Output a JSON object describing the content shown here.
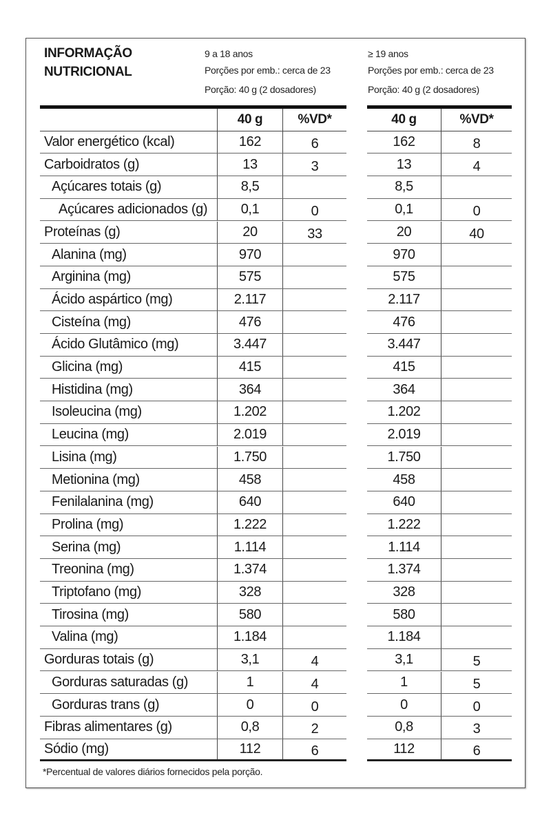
{
  "title": [
    "INFORMAÇÃO",
    "NUTRICIONAL"
  ],
  "groups": [
    {
      "age": "9 a 18 anos",
      "servings": "Porções por emb.: cerca de 23",
      "portion": "Porção: 40 g (2 dosadores)",
      "col_amount": "40 g",
      "col_vd": "%VD*"
    },
    {
      "age": "≥ 19 anos",
      "servings": "Porções por emb.: cerca de 23",
      "portion": "Porção: 40 g (2 dosadores)",
      "col_amount": "40 g",
      "col_vd": "%VD*"
    }
  ],
  "rows": [
    {
      "label": "Valor energético (kcal)",
      "indent": 0,
      "a1": "162",
      "v1": "6",
      "a2": "162",
      "v2": "8"
    },
    {
      "label": "Carboidratos (g)",
      "indent": 0,
      "a1": "13",
      "v1": "3",
      "a2": "13",
      "v2": "4"
    },
    {
      "label": "Açúcares totais (g)",
      "indent": 1,
      "a1": "8,5",
      "v1": "",
      "a2": "8,5",
      "v2": ""
    },
    {
      "label": "Açúcares adicionados (g)",
      "indent": 2,
      "a1": "0,1",
      "v1": "0",
      "a2": "0,1",
      "v2": "0"
    },
    {
      "label": "Proteínas (g)",
      "indent": 0,
      "a1": "20",
      "v1": "33",
      "a2": "20",
      "v2": "40"
    },
    {
      "label": "Alanina (mg)",
      "indent": 1,
      "a1": "970",
      "v1": "",
      "a2": "970",
      "v2": ""
    },
    {
      "label": "Arginina (mg)",
      "indent": 1,
      "a1": "575",
      "v1": "",
      "a2": "575",
      "v2": ""
    },
    {
      "label": "Ácido aspártico (mg)",
      "indent": 1,
      "a1": "2.117",
      "v1": "",
      "a2": "2.117",
      "v2": ""
    },
    {
      "label": "Cisteína (mg)",
      "indent": 1,
      "a1": "476",
      "v1": "",
      "a2": "476",
      "v2": ""
    },
    {
      "label": "Ácido Glutâmico (mg)",
      "indent": 1,
      "a1": "3.447",
      "v1": "",
      "a2": "3.447",
      "v2": ""
    },
    {
      "label": "Glicina (mg)",
      "indent": 1,
      "a1": "415",
      "v1": "",
      "a2": "415",
      "v2": ""
    },
    {
      "label": "Histidina (mg)",
      "indent": 1,
      "a1": "364",
      "v1": "",
      "a2": "364",
      "v2": ""
    },
    {
      "label": "Isoleucina (mg)",
      "indent": 1,
      "a1": "1.202",
      "v1": "",
      "a2": "1.202",
      "v2": ""
    },
    {
      "label": "Leucina (mg)",
      "indent": 1,
      "a1": "2.019",
      "v1": "",
      "a2": "2.019",
      "v2": ""
    },
    {
      "label": "Lisina (mg)",
      "indent": 1,
      "a1": "1.750",
      "v1": "",
      "a2": "1.750",
      "v2": ""
    },
    {
      "label": "Metionina (mg)",
      "indent": 1,
      "a1": "458",
      "v1": "",
      "a2": "458",
      "v2": ""
    },
    {
      "label": "Fenilalanina (mg)",
      "indent": 1,
      "a1": "640",
      "v1": "",
      "a2": "640",
      "v2": ""
    },
    {
      "label": "Prolina (mg)",
      "indent": 1,
      "a1": "1.222",
      "v1": "",
      "a2": "1.222",
      "v2": ""
    },
    {
      "label": "Serina (mg)",
      "indent": 1,
      "a1": "1.114",
      "v1": "",
      "a2": "1.114",
      "v2": ""
    },
    {
      "label": "Treonina (mg)",
      "indent": 1,
      "a1": "1.374",
      "v1": "",
      "a2": "1.374",
      "v2": ""
    },
    {
      "label": "Triptofano (mg)",
      "indent": 1,
      "a1": "328",
      "v1": "",
      "a2": "328",
      "v2": ""
    },
    {
      "label": "Tirosina (mg)",
      "indent": 1,
      "a1": "580",
      "v1": "",
      "a2": "580",
      "v2": ""
    },
    {
      "label": "Valina (mg)",
      "indent": 1,
      "a1": "1.184",
      "v1": "",
      "a2": "1.184",
      "v2": ""
    },
    {
      "label": "Gorduras totais (g)",
      "indent": 0,
      "a1": "3,1",
      "v1": "4",
      "a2": "3,1",
      "v2": "5"
    },
    {
      "label": "Gorduras saturadas (g)",
      "indent": 1,
      "a1": "1",
      "v1": "4",
      "a2": "1",
      "v2": "5"
    },
    {
      "label": "Gorduras trans (g)",
      "indent": 1,
      "a1": "0",
      "v1": "0",
      "a2": "0",
      "v2": "0"
    },
    {
      "label": "Fibras alimentares (g)",
      "indent": 0,
      "a1": "0,8",
      "v1": "2",
      "a2": "0,8",
      "v2": "3"
    },
    {
      "label": "Sódio (mg)",
      "indent": 0,
      "a1": "112",
      "v1": "6",
      "a2": "112",
      "v2": "6"
    }
  ],
  "footnote": "*Percentual de valores diários fornecidos pela porção."
}
